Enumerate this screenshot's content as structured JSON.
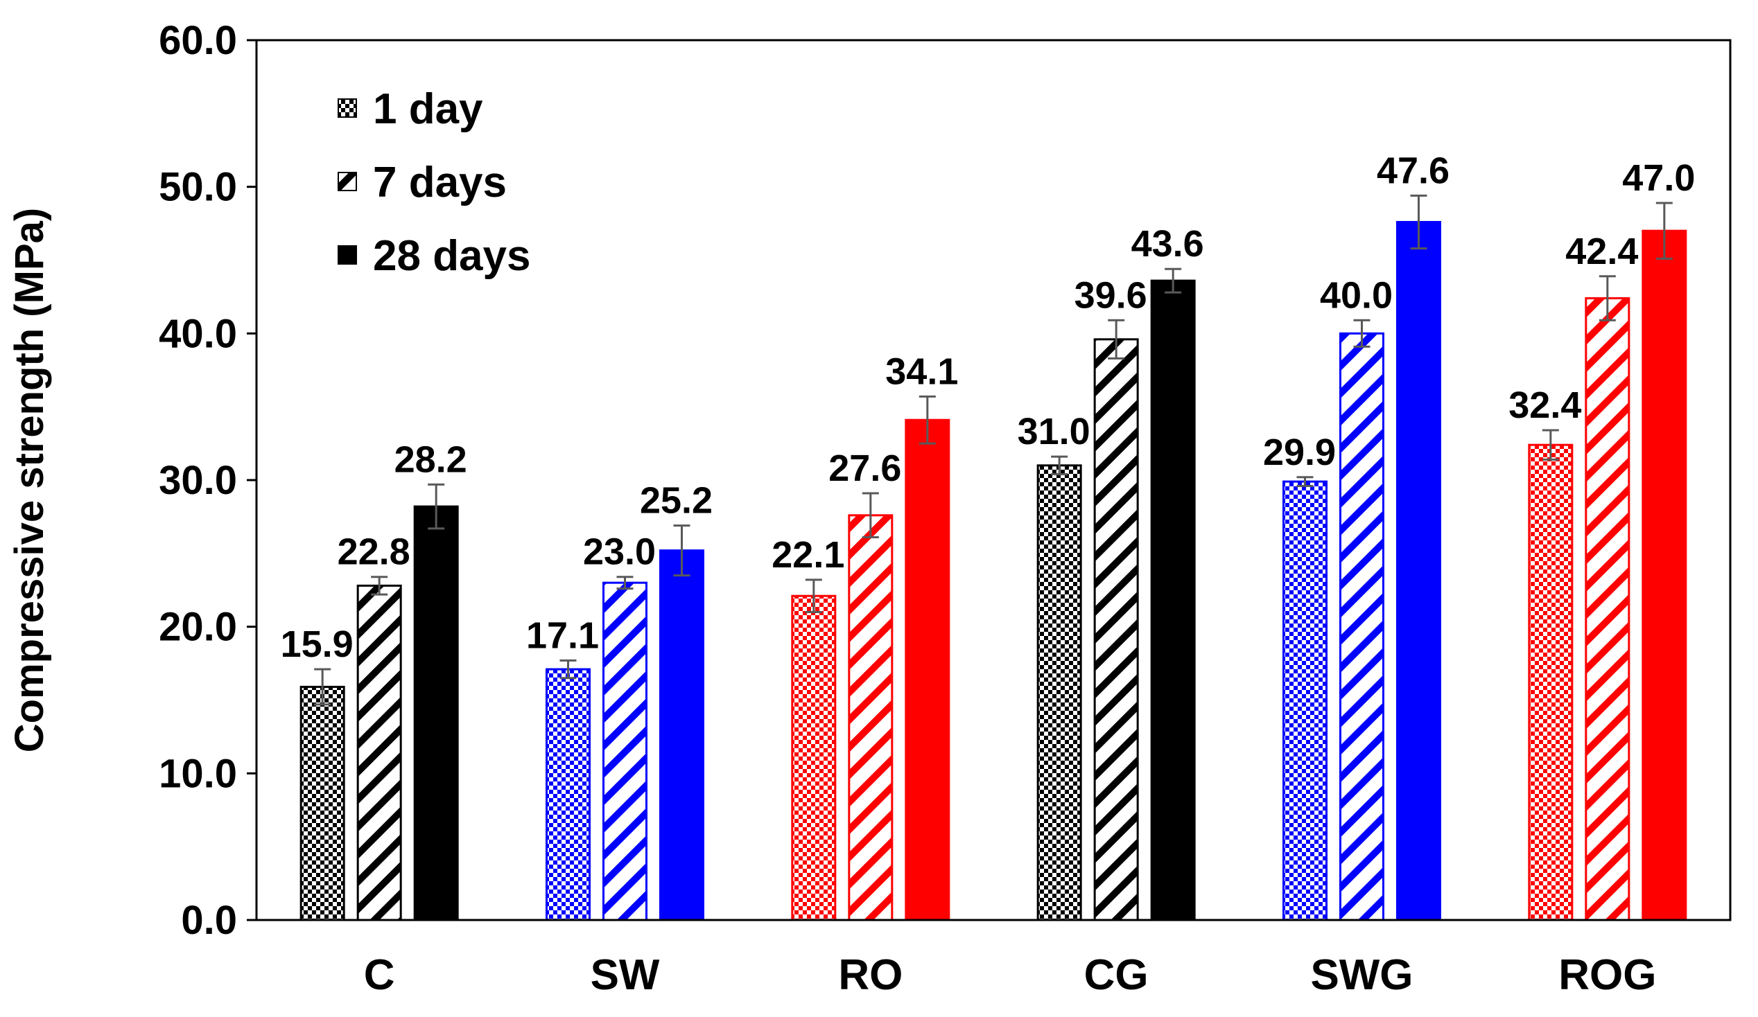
{
  "chart_data": {
    "type": "bar",
    "title": "",
    "xlabel": "",
    "ylabel": "Compressive strength (MPa)",
    "ylim": [
      0,
      60
    ],
    "yticks": [
      "0.0",
      "10.0",
      "20.0",
      "30.0",
      "40.0",
      "50.0",
      "60.0"
    ],
    "categories": [
      "C",
      "SW",
      "RO",
      "CG",
      "SWG",
      "ROG"
    ],
    "category_colors": [
      "#000000",
      "#0000FF",
      "#FF0000",
      "#000000",
      "#0000FF",
      "#FF0000"
    ],
    "series": [
      {
        "name": "1 day",
        "pattern": "checker",
        "values": [
          15.9,
          17.1,
          22.1,
          31.0,
          29.9,
          32.4
        ],
        "errors": [
          1.2,
          0.6,
          1.1,
          0.6,
          0.3,
          1.0
        ],
        "labels": [
          "15.9",
          "17.1",
          "22.1",
          "31.0",
          "29.9",
          "32.4"
        ]
      },
      {
        "name": "7 days",
        "pattern": "diagonal",
        "values": [
          22.8,
          23.0,
          27.6,
          39.6,
          40.0,
          42.4
        ],
        "errors": [
          0.6,
          0.4,
          1.5,
          1.3,
          0.9,
          1.5
        ],
        "labels": [
          "22.8",
          "23.0",
          "27.6",
          "39.6",
          "40.0",
          "42.4"
        ]
      },
      {
        "name": "28 days",
        "pattern": "solid",
        "values": [
          28.2,
          25.2,
          34.1,
          43.6,
          47.6,
          47.0
        ],
        "errors": [
          1.5,
          1.7,
          1.6,
          0.8,
          1.8,
          1.9
        ],
        "labels": [
          "28.2",
          "25.2",
          "34.1",
          "43.6",
          "47.6",
          "47.0"
        ]
      }
    ],
    "legend": {
      "placement": "top-left",
      "items": [
        "1 day",
        "7 days",
        "28 days"
      ]
    }
  }
}
